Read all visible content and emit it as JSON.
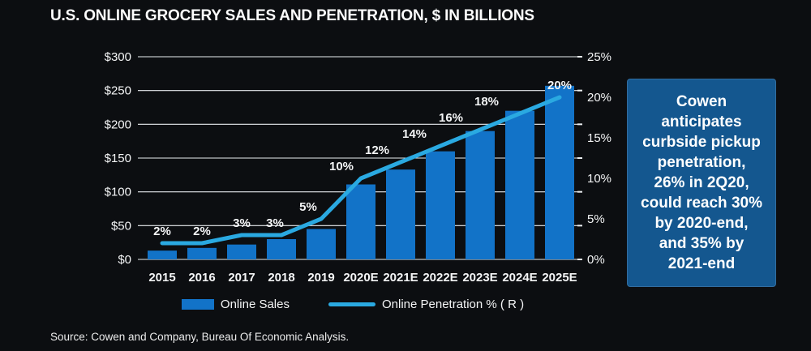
{
  "title": "U.S. ONLINE GROCERY SALES AND PENETRATION, $ IN BILLIONS",
  "source": "Source: Cowen and Company, Bureau Of Economic Analysis.",
  "colors": {
    "background": "#0c0e11",
    "bar": "#1273c8",
    "line": "#2aa9e1",
    "grid": "#e9edf0",
    "callout_bg": "#14578f",
    "text": "#ffffff"
  },
  "legend": {
    "sales_label": "Online Sales",
    "penetration_label": "Online Penetration % ( R )"
  },
  "callout": {
    "text": "Cowen\nanticipates\ncurbside pickup\npenetration,\n26% in 2Q20,\ncould reach 30%\nby 2020-end,\nand 35% by\n2021-end"
  },
  "chart_data": {
    "type": "bar",
    "title": "U.S. ONLINE GROCERY SALES AND PENETRATION, $ IN BILLIONS",
    "categories": [
      "2015",
      "2016",
      "2017",
      "2018",
      "2019",
      "2020E",
      "2021E",
      "2022E",
      "2023E",
      "2024E",
      "2025E"
    ],
    "series": [
      {
        "name": "Online Sales",
        "type": "bar",
        "axis": "left",
        "values": [
          13,
          17,
          22,
          30,
          45,
          111,
          133,
          160,
          190,
          220,
          257
        ],
        "color": "#1273c8"
      },
      {
        "name": "Online Penetration % ( R )",
        "type": "line",
        "axis": "right",
        "values": [
          2,
          2,
          3,
          3,
          5,
          10,
          12,
          14,
          16,
          18,
          20
        ],
        "point_labels": [
          "2%",
          "2%",
          "3%",
          "3%",
          "5%",
          "10%",
          "12%",
          "14%",
          "16%",
          "18%",
          "20%"
        ],
        "color": "#2aa9e1"
      }
    ],
    "left_axis": {
      "tick_labels": [
        "$300",
        "$250",
        "$200",
        "$150",
        "$100",
        "$50",
        "$0"
      ],
      "min": 0,
      "max": 300
    },
    "right_axis": {
      "tick_labels": [
        "25%",
        "20%",
        "15%",
        "10%",
        "5%",
        "0%"
      ],
      "min": 0,
      "max": 25
    },
    "grid": true,
    "legend_position": "bottom"
  }
}
